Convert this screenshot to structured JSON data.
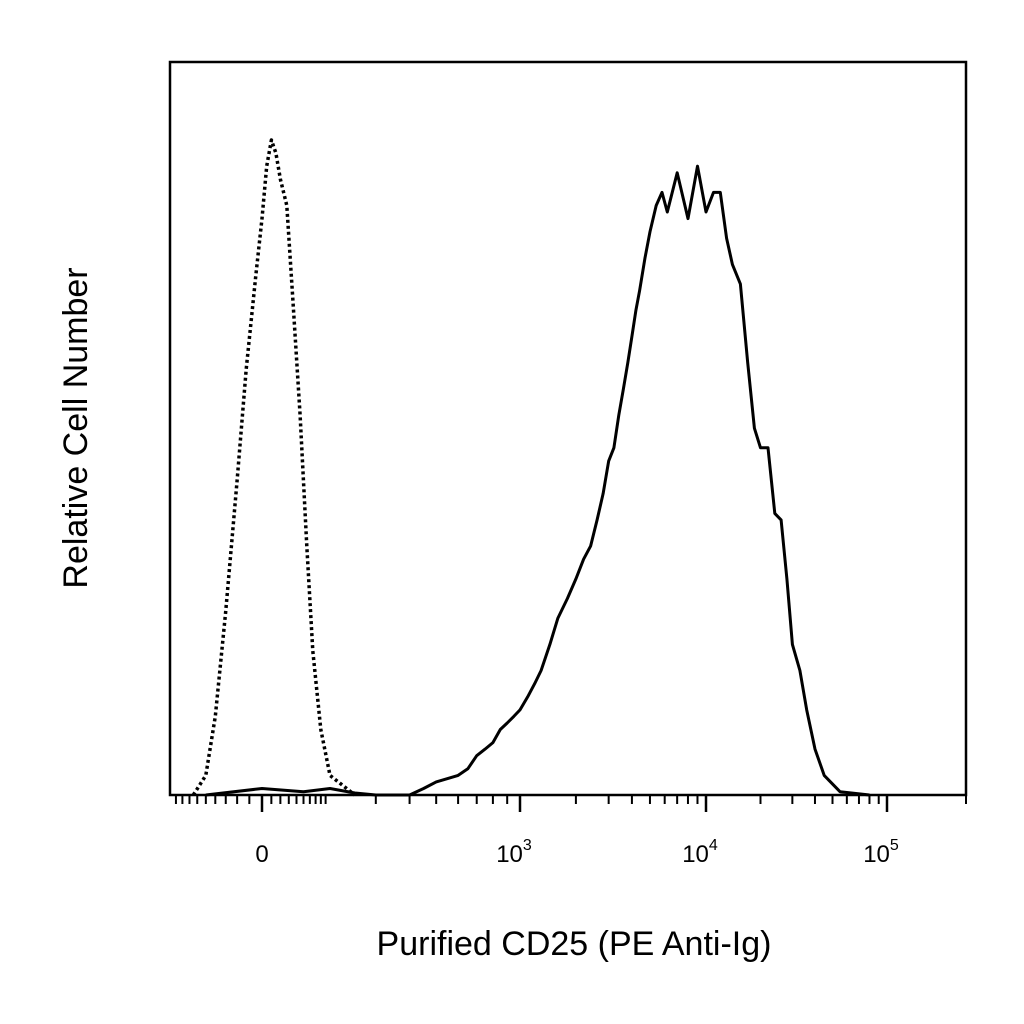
{
  "chart_data": {
    "type": "line",
    "title": "",
    "xlabel": "Purified CD25 (PE Anti-Ig)",
    "ylabel": "Relative Cell Number",
    "x_scale": "biexponential",
    "xlim": [
      -200,
      200000
    ],
    "ylim": [
      0,
      100
    ],
    "grid": false,
    "legend": "none",
    "x_ticks": [
      {
        "value": 0,
        "base": "0",
        "exp": ""
      },
      {
        "value": 1000,
        "base": "10",
        "exp": "3"
      },
      {
        "value": 10000,
        "base": "10",
        "exp": "4"
      },
      {
        "value": 100000,
        "base": "10",
        "exp": "5"
      }
    ],
    "series": [
      {
        "style": "dotted",
        "color": "#000000",
        "x": [
          -130,
          -100,
          -80,
          -60,
          -40,
          -25,
          -10,
          0,
          10,
          20,
          30,
          40,
          55,
          70,
          90,
          110,
          130,
          160,
          200,
          250
        ],
        "y": [
          0,
          3,
          12,
          28,
          48,
          65,
          79,
          88,
          96,
          100,
          98,
          94,
          90,
          76,
          58,
          38,
          22,
          10,
          3,
          0
        ]
      },
      {
        "style": "solid",
        "color": "#000000",
        "x": [
          -100,
          0,
          100,
          200,
          250,
          300,
          350,
          400,
          450,
          500,
          550,
          600,
          650,
          700,
          750,
          800,
          850,
          900,
          950,
          1000,
          1100,
          1200,
          1300,
          1450,
          1600,
          1800,
          2000,
          2200,
          2400,
          2600,
          2800,
          3000,
          3200,
          3400,
          3600,
          3800,
          4000,
          4200,
          4400,
          4700,
          5000,
          5400,
          5800,
          6200,
          7000,
          8000,
          9000,
          10000,
          11000,
          12000,
          13000,
          14000,
          15500,
          17000,
          18500,
          20000,
          22000,
          24000,
          26000,
          28000,
          30000,
          33000,
          36000,
          40000,
          45000,
          55000,
          80000
        ],
        "y": [
          0,
          1,
          0.5,
          1,
          0.3,
          0,
          0,
          0,
          1,
          2,
          2.5,
          3,
          4,
          6,
          7,
          8,
          10,
          11,
          12,
          13,
          15,
          17,
          19,
          23,
          27,
          30,
          33,
          36,
          38,
          42,
          46,
          51,
          53,
          58,
          62,
          66,
          70,
          74,
          77,
          82,
          86,
          90,
          92,
          89,
          95,
          88,
          96,
          89,
          92,
          92,
          85,
          81,
          78,
          66,
          56,
          53,
          53,
          43,
          42,
          33,
          23,
          19,
          13,
          7,
          3,
          0.5,
          0
        ]
      }
    ]
  }
}
